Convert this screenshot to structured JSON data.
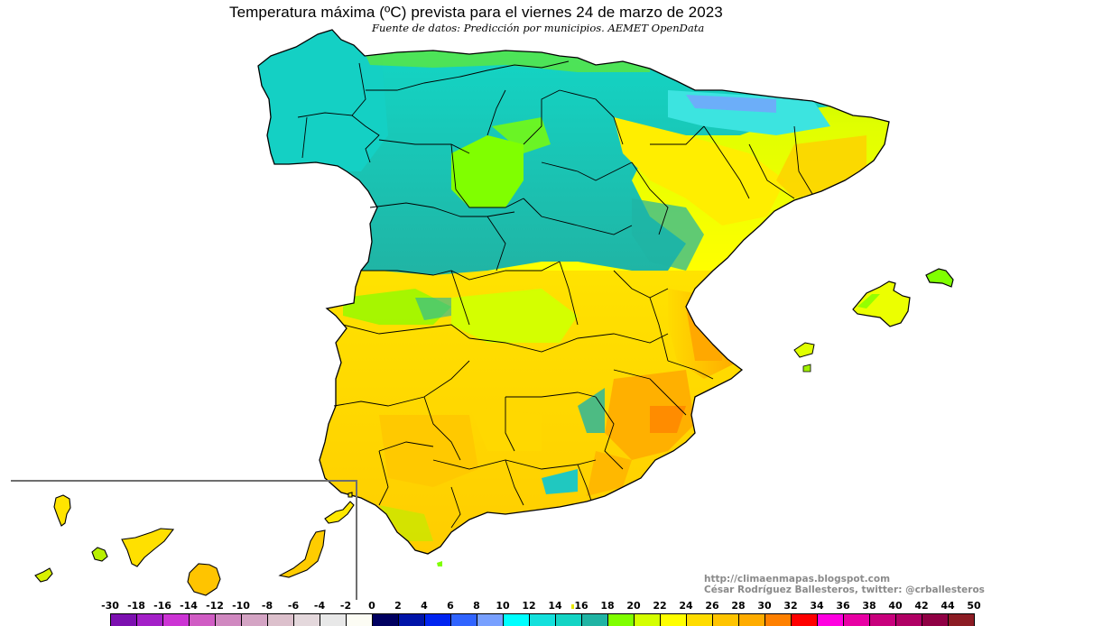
{
  "header": {
    "title": "Temperatura máxima (ºC) prevista para el viernes 24 de marzo de 2023",
    "subtitle": "Fuente de datos: Predicción por municipios. AEMET OpenData"
  },
  "credits": {
    "url": "http://climaenmapas.blogspot.com",
    "author": "César Rodríguez Ballesteros, twitter: @crballesteros"
  },
  "map": {
    "region": "Peninsular Spain, Balearic Islands and Canary Islands (inset)",
    "variable": "Maximum temperature forecast (ºC)",
    "date": "viernes 24 de marzo de 2023",
    "inset": "Canary Islands",
    "palette": {
      "cold_north": "#12d8c8",
      "mid_valley": "#20b4a4",
      "cool_green": "#80ff00",
      "lime": "#d4ff00",
      "yellow": "#ffff00",
      "gold": "#ffd800",
      "orange": "#ffc000",
      "dark_orange": "#ff8000",
      "mountain_blue": "#78a0ff"
    }
  },
  "legend": {
    "labels": [
      "-30",
      "-18",
      "-16",
      "-14",
      "-12",
      "-10",
      "-8",
      "-6",
      "-4",
      "-2",
      "0",
      "2",
      "4",
      "6",
      "8",
      "10",
      "12",
      "14",
      "16",
      "18",
      "20",
      "22",
      "24",
      "26",
      "28",
      "30",
      "32",
      "34",
      "36",
      "38",
      "40",
      "42",
      "44",
      "50"
    ],
    "colors": [
      "#7c10b0",
      "#a420c8",
      "#cc34d4",
      "#d05cc4",
      "#d088c0",
      "#d4a4c4",
      "#dcc0cc",
      "#e4d8dc",
      "#e8e8e8",
      "#fcfcf4",
      "#000060",
      "#0014a8",
      "#0024f0",
      "#3064ff",
      "#78a0ff",
      "#00ffff",
      "#14e0dc",
      "#14d4c4",
      "#20b4a4",
      "#80ff00",
      "#d4ff00",
      "#ffff00",
      "#ffdc00",
      "#ffc400",
      "#ffac00",
      "#ff8000",
      "#ff0000",
      "#ff00e0",
      "#e800a4",
      "#c8007c",
      "#b00064",
      "#900044",
      "#8c1c24"
    ]
  },
  "chart_data": {
    "type": "heatmap",
    "title": "Temperatura máxima (ºC) prevista para el viernes 24 de marzo de 2023",
    "subtitle": "Fuente de datos: Predicción por municipios. AEMET OpenData",
    "colorbar": {
      "ticks": [
        -30,
        -18,
        -16,
        -14,
        -12,
        -10,
        -8,
        -6,
        -4,
        -2,
        0,
        2,
        4,
        6,
        8,
        10,
        12,
        14,
        16,
        18,
        20,
        22,
        24,
        26,
        28,
        30,
        32,
        34,
        36,
        38,
        40,
        42,
        44,
        50
      ],
      "units": "ºC"
    },
    "regional_estimates_C": {
      "Galicia": "12-16",
      "Asturias/Cantabria coast": "16-20",
      "Castilla y León": "14-20",
      "Pyrenees": "8-14",
      "Ebro valley": "22-26",
      "Cataluña": "22-28",
      "Madrid/Castilla-La Mancha": "20-24",
      "Extremadura": "22-26",
      "Comunidad Valenciana": "26-30",
      "Murcia": "26-30",
      "Andalucía": "22-28",
      "Baleares": "18-24",
      "Canarias": "22-28"
    }
  }
}
